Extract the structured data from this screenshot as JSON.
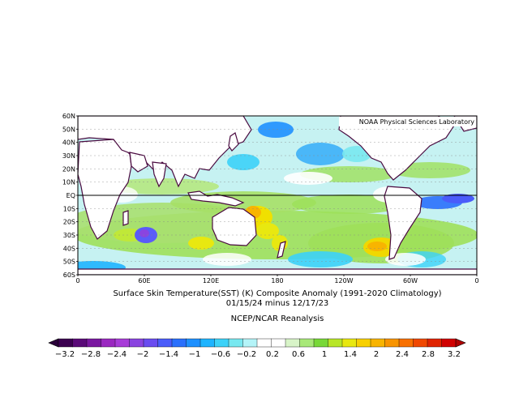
{
  "source_label": "NOAA Physical Sciences Laboratory",
  "caption": {
    "line1": "Surface Skin Temperature(SST) (K) Composite Anomaly (1991-2020 Climatology)",
    "line2": "01/15/24 minus 12/17/23",
    "line3": "NCEP/NCAR Reanalysis"
  },
  "axes": {
    "lat_labels": [
      "60N",
      "50N",
      "40N",
      "30N",
      "20N",
      "10N",
      "EQ",
      "10S",
      "20S",
      "30S",
      "40S",
      "50S",
      "60S"
    ],
    "lon_labels": [
      "0",
      "60E",
      "120E",
      "180",
      "120W",
      "60W",
      "0"
    ]
  },
  "colorbar": {
    "labels": [
      "-3.2",
      "-2.8",
      "-2.4",
      "-2",
      "-1.4",
      "-1",
      "-0.6",
      "-0.2",
      "0.2",
      "0.6",
      "1",
      "1.4",
      "2",
      "2.4",
      "2.8",
      "3.2"
    ],
    "colors": [
      "#3b0050",
      "#5a0a78",
      "#7a18a0",
      "#9a28c0",
      "#a83cd8",
      "#8a44e0",
      "#6a4cf0",
      "#4a5cfa",
      "#2a70fc",
      "#1e90ff",
      "#1eb4ff",
      "#3cd2f8",
      "#78e8f0",
      "#b4f4f8",
      "#ffffff",
      "#ffffff",
      "#d8f4c8",
      "#a8e878",
      "#78d838",
      "#b8e628",
      "#e8e810",
      "#f8d000",
      "#f8b400",
      "#f89400",
      "#f87000",
      "#f04800",
      "#e02400",
      "#d00000"
    ],
    "under_color": "#2a003a",
    "over_color": "#b00000"
  },
  "palette": {
    "land": "#ffffff",
    "coast": "#4a0a40",
    "ocean_base": "#b8f0f0"
  }
}
